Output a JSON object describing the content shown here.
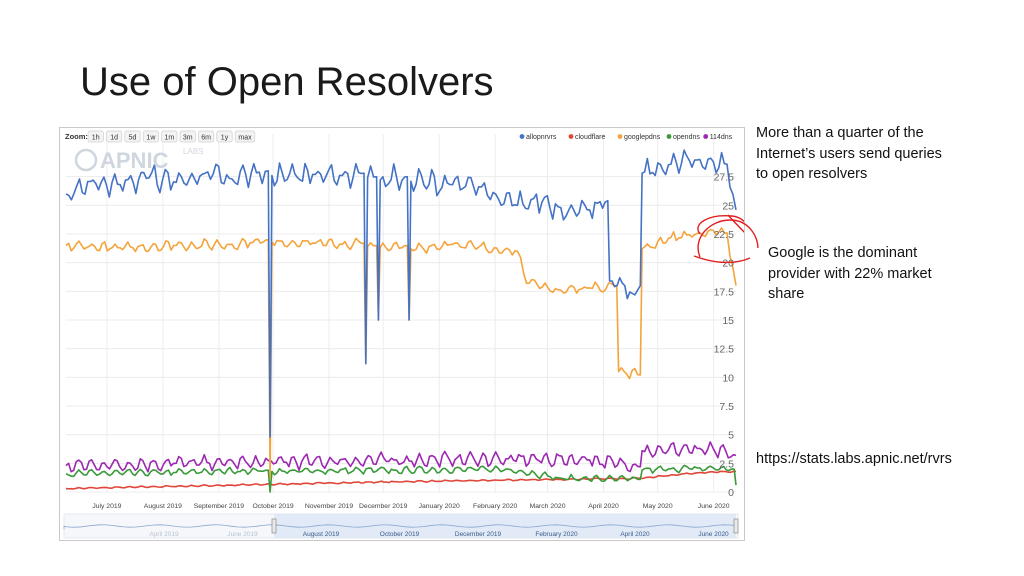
{
  "slide": {
    "title": "Use of Open Resolvers",
    "note_quarter": "More than a quarter of the Internet’s users send queries to open resolvers",
    "note_google": "Google is the dominant provider with 22% market share",
    "note_url": "https://stats.labs.apnic.net/rvrs"
  },
  "chart_toolbar": {
    "zoom_label": "Zoom:",
    "zoom_buttons": [
      "1h",
      "1d",
      "5d",
      "1w",
      "1m",
      "3m",
      "6m",
      "1y",
      "max"
    ],
    "logo_text": "APNIC",
    "logo_labs": "LABS"
  },
  "colors": {
    "allopnrvrs": "#4472c4",
    "cloudflare": "#e0463a",
    "googlepdns": "#f5a33b",
    "opendns": "#3a9a3a",
    "114dns": "#9c27b0",
    "annotation": "#e02020"
  },
  "chart_data": {
    "type": "line",
    "legend_position": "top-right",
    "grid": true,
    "ylim": [
      0,
      30
    ],
    "yticks": [
      "0",
      "2.5",
      "5",
      "7.5",
      "10",
      "12.5",
      "15",
      "17.5",
      "20",
      "22.5",
      "25",
      "27.5"
    ],
    "xlim": [
      "2019-06-15",
      "2020-06-20"
    ],
    "xticks": [
      "July 2019",
      "August 2019",
      "September 2019",
      "October 2019",
      "November 2019",
      "December 2019",
      "January 2020",
      "February 2020",
      "March 2020",
      "April 2020",
      "May 2020",
      "June 2020"
    ],
    "navigator_labels": [
      "April 2019",
      "June 2019",
      "August 2019",
      "October 2019",
      "December 2019",
      "February 2020",
      "April 2020",
      "June 2020"
    ],
    "series": [
      {
        "name": "allopnrvrs",
        "color": "#4472c4",
        "values": [
          [
            "2019-06-15",
            26.0
          ],
          [
            "2019-06-30",
            27.2
          ],
          [
            "2019-07-15",
            26.8
          ],
          [
            "2019-07-31",
            27.4
          ],
          [
            "2019-08-15",
            27.0
          ],
          [
            "2019-08-31",
            27.8
          ],
          [
            "2019-09-15",
            27.3
          ],
          [
            "2019-09-30",
            27.9
          ],
          [
            "2019-10-05",
            28.0
          ],
          [
            "2019-10-06",
            4.8
          ],
          [
            "2019-10-07",
            27.6
          ],
          [
            "2019-10-31",
            27.7
          ],
          [
            "2019-11-15",
            27.6
          ],
          [
            "2019-11-27",
            27.8
          ],
          [
            "2019-11-28",
            11.2
          ],
          [
            "2019-11-29",
            27.4
          ],
          [
            "2019-12-04",
            27.5
          ],
          [
            "2019-12-05",
            15.0
          ],
          [
            "2019-12-06",
            27.2
          ],
          [
            "2019-12-21",
            27.5
          ],
          [
            "2019-12-22",
            15.0
          ],
          [
            "2019-12-23",
            27.1
          ],
          [
            "2020-01-15",
            26.8
          ],
          [
            "2020-01-31",
            26.6
          ],
          [
            "2020-02-05",
            25.5
          ],
          [
            "2020-02-20",
            25.0
          ],
          [
            "2020-02-29",
            25.6
          ],
          [
            "2020-03-15",
            24.8
          ],
          [
            "2020-03-31",
            24.6
          ],
          [
            "2020-04-10",
            25.4
          ],
          [
            "2020-04-11",
            18.4
          ],
          [
            "2020-04-25",
            17.2
          ],
          [
            "2020-04-28",
            18.0
          ],
          [
            "2020-04-29",
            27.8
          ],
          [
            "2020-05-15",
            28.6
          ],
          [
            "2020-05-31",
            29.0
          ],
          [
            "2020-06-15",
            28.6
          ],
          [
            "2020-06-20",
            24.6
          ]
        ]
      },
      {
        "name": "googlepdns",
        "color": "#f5a33b",
        "values": [
          [
            "2019-06-15",
            21.5
          ],
          [
            "2019-07-15",
            21.3
          ],
          [
            "2019-08-15",
            21.5
          ],
          [
            "2019-09-15",
            21.6
          ],
          [
            "2019-10-05",
            22.0
          ],
          [
            "2019-10-06",
            1.2
          ],
          [
            "2019-10-07",
            21.8
          ],
          [
            "2019-10-31",
            21.7
          ],
          [
            "2019-11-15",
            21.6
          ],
          [
            "2019-11-27",
            21.7
          ],
          [
            "2019-11-28",
            11.2
          ],
          [
            "2019-11-29",
            21.4
          ],
          [
            "2019-12-04",
            21.5
          ],
          [
            "2019-12-05",
            15.0
          ],
          [
            "2019-12-06",
            21.3
          ],
          [
            "2019-12-21",
            21.5
          ],
          [
            "2019-12-22",
            15.0
          ],
          [
            "2019-12-23",
            21.2
          ],
          [
            "2020-01-15",
            21.6
          ],
          [
            "2020-02-20",
            21.0
          ],
          [
            "2020-02-25",
            18.2
          ],
          [
            "2020-03-15",
            17.6
          ],
          [
            "2020-03-31",
            17.8
          ],
          [
            "2020-04-15",
            18.0
          ],
          [
            "2020-04-16",
            10.5
          ],
          [
            "2020-04-28",
            10.2
          ],
          [
            "2020-04-29",
            21.2
          ],
          [
            "2020-05-15",
            22.2
          ],
          [
            "2020-05-31",
            22.6
          ],
          [
            "2020-06-15",
            22.6
          ],
          [
            "2020-06-20",
            18.0
          ]
        ]
      },
      {
        "name": "114dns",
        "color": "#9c27b0",
        "values": [
          [
            "2019-06-15",
            2.3
          ],
          [
            "2019-08-15",
            2.5
          ],
          [
            "2019-10-15",
            2.6
          ],
          [
            "2019-12-15",
            2.8
          ],
          [
            "2020-02-15",
            2.9
          ],
          [
            "2020-03-31",
            2.8
          ],
          [
            "2020-04-28",
            2.2
          ],
          [
            "2020-04-29",
            3.6
          ],
          [
            "2020-05-31",
            3.8
          ],
          [
            "2020-06-20",
            3.2
          ]
        ]
      },
      {
        "name": "opendns",
        "color": "#3a9a3a",
        "values": [
          [
            "2019-06-15",
            1.6
          ],
          [
            "2019-08-15",
            1.7
          ],
          [
            "2019-10-05",
            1.9
          ],
          [
            "2019-10-06",
            0.0
          ],
          [
            "2019-10-07",
            1.8
          ],
          [
            "2019-12-15",
            1.9
          ],
          [
            "2020-02-15",
            2.0
          ],
          [
            "2020-03-15",
            1.2
          ],
          [
            "2020-04-28",
            1.1
          ],
          [
            "2020-04-29",
            1.9
          ],
          [
            "2020-05-31",
            2.1
          ],
          [
            "2020-06-19",
            2.0
          ],
          [
            "2020-06-20",
            0.6
          ]
        ]
      },
      {
        "name": "cloudflare",
        "color": "#e0463a",
        "values": [
          [
            "2019-06-15",
            0.3
          ],
          [
            "2019-09-15",
            0.6
          ],
          [
            "2019-12-15",
            0.9
          ],
          [
            "2020-03-15",
            1.1
          ],
          [
            "2020-04-28",
            1.2
          ],
          [
            "2020-05-31",
            1.7
          ],
          [
            "2020-06-20",
            1.8
          ]
        ]
      }
    ]
  }
}
